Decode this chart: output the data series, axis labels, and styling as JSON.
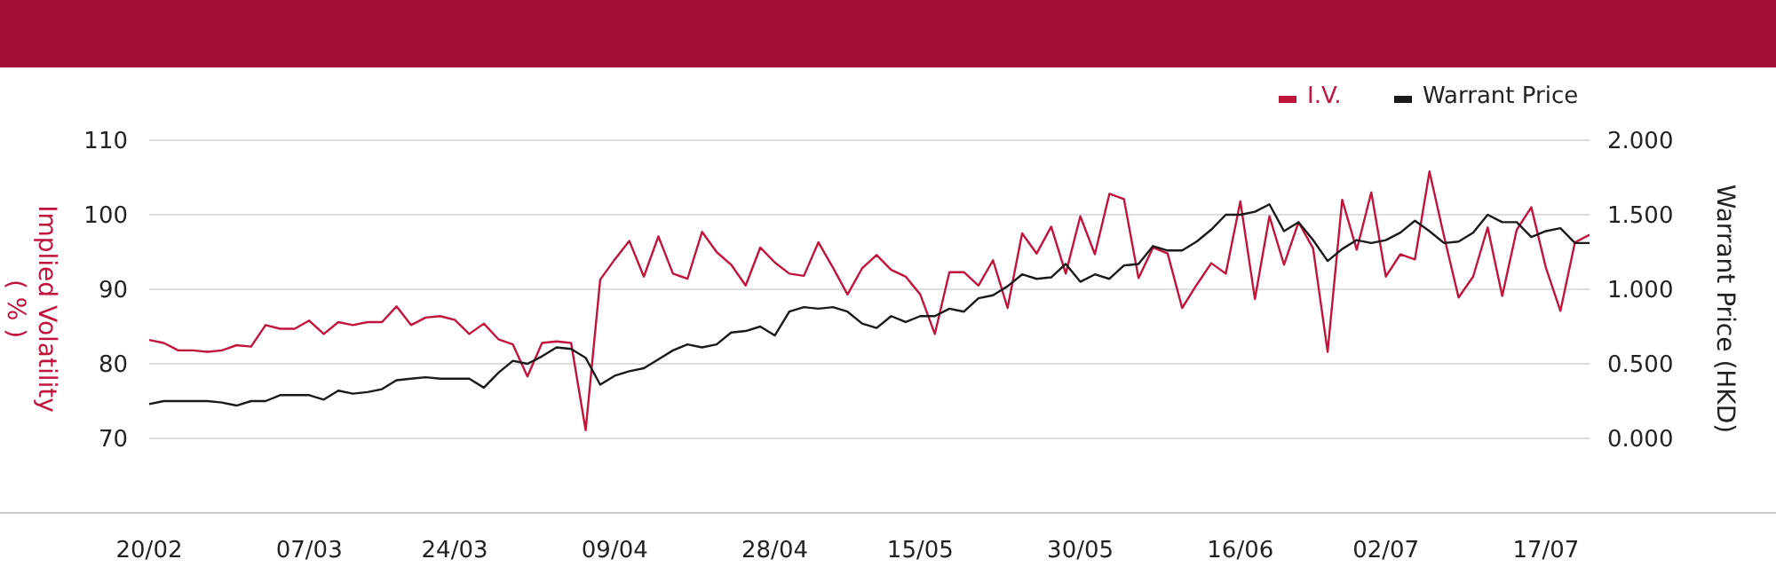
{
  "chart_data": {
    "type": "line",
    "ylabel": "Implied Volatility\n( % )",
    "y2label": "Warrant Price (HKD)",
    "categories": [
      "20/02",
      null,
      null,
      null,
      null,
      null,
      null,
      null,
      null,
      null,
      null,
      "07/03",
      null,
      null,
      null,
      null,
      null,
      null,
      null,
      null,
      null,
      "24/03",
      null,
      null,
      null,
      null,
      null,
      null,
      null,
      null,
      null,
      null,
      "09/04",
      null,
      null,
      null,
      null,
      null,
      null,
      null,
      null,
      null,
      null,
      "28/04",
      null,
      null,
      null,
      null,
      null,
      null,
      null,
      null,
      null,
      "15/05",
      null,
      null,
      null,
      null,
      null,
      null,
      null,
      null,
      null,
      null,
      "30/05",
      null,
      null,
      null,
      null,
      null,
      null,
      null,
      null,
      null,
      null,
      "16/06",
      null,
      null,
      null,
      null,
      null,
      null,
      null,
      null,
      null,
      "02/07",
      null,
      null,
      null,
      null,
      null,
      null,
      null,
      null,
      null,
      null,
      "17/07",
      null,
      null,
      null
    ],
    "series": [
      {
        "name": "I.V.",
        "color": "#c0143c",
        "values": [
          83.2,
          82.8,
          81.8,
          81.8,
          81.6,
          81.8,
          82.5,
          82.3,
          85.2,
          84.7,
          84.7,
          85.8,
          84.0,
          85.6,
          85.2,
          85.6,
          85.6,
          87.7,
          85.2,
          86.2,
          86.4,
          85.9,
          84.0,
          85.4,
          83.3,
          82.6,
          78.3,
          82.8,
          83.0,
          82.8,
          71.1,
          91.3,
          94.0,
          96.5,
          91.7,
          97.1,
          92.1,
          91.4,
          97.7,
          95.0,
          93.3,
          90.5,
          95.6,
          93.6,
          92.1,
          91.8,
          96.3,
          92.9,
          89.3,
          92.8,
          94.6,
          92.6,
          91.7,
          89.3,
          84.0,
          92.3,
          92.3,
          90.5,
          93.9,
          87.5,
          97.5,
          94.8,
          98.4,
          92.1,
          99.8,
          94.7,
          102.8,
          102.1,
          91.5,
          95.6,
          94.8,
          87.5,
          90.6,
          93.5,
          92.1,
          101.8,
          88.7,
          99.8,
          93.3,
          99.0,
          95.5,
          81.6,
          102.0,
          95.3,
          103.0,
          91.7,
          94.7,
          94.0,
          105.8,
          97.1,
          88.9,
          91.7,
          98.3,
          89.1,
          98.0,
          101.0,
          92.9,
          87.1,
          96.3,
          97.3
        ]
      },
      {
        "name": "Warrant Price",
        "color": "#1a1a1a",
        "axis": "y2",
        "values": [
          0.23,
          0.25,
          0.25,
          0.25,
          0.25,
          0.24,
          0.22,
          0.25,
          0.25,
          0.29,
          0.29,
          0.29,
          0.26,
          0.32,
          0.3,
          0.31,
          0.33,
          0.39,
          0.4,
          0.41,
          0.4,
          0.4,
          0.4,
          0.34,
          0.44,
          0.52,
          0.5,
          0.55,
          0.61,
          0.6,
          0.54,
          0.36,
          0.42,
          0.45,
          0.47,
          0.53,
          0.59,
          0.63,
          0.61,
          0.63,
          0.71,
          0.72,
          0.75,
          0.69,
          0.85,
          0.88,
          0.87,
          0.88,
          0.85,
          0.77,
          0.74,
          0.82,
          0.78,
          0.82,
          0.82,
          0.87,
          0.85,
          0.94,
          0.96,
          1.02,
          1.1,
          1.07,
          1.08,
          1.17,
          1.05,
          1.1,
          1.07,
          1.16,
          1.17,
          1.29,
          1.26,
          1.26,
          1.32,
          1.4,
          1.5,
          1.5,
          1.52,
          1.57,
          1.39,
          1.45,
          1.33,
          1.19,
          1.27,
          1.33,
          1.31,
          1.33,
          1.38,
          1.46,
          1.39,
          1.31,
          1.32,
          1.38,
          1.5,
          1.45,
          1.45,
          1.35,
          1.39,
          1.41,
          1.31,
          1.31
        ]
      }
    ],
    "ylim": [
      60,
      110
    ],
    "yticks": [
      70,
      80,
      90,
      100,
      110
    ],
    "y2lim": [
      -0.5,
      2
    ],
    "y2ticks": [
      {
        "value": 0,
        "label": "0.000"
      },
      {
        "value": 0.5,
        "label": "0.500"
      },
      {
        "value": 1,
        "label": "1.000"
      },
      {
        "value": 1.5,
        "label": "1.500"
      },
      {
        "value": 2,
        "label": "2.000"
      }
    ],
    "grid": "y",
    "legend": "top right",
    "line_style": "solid",
    "marker": "none"
  }
}
